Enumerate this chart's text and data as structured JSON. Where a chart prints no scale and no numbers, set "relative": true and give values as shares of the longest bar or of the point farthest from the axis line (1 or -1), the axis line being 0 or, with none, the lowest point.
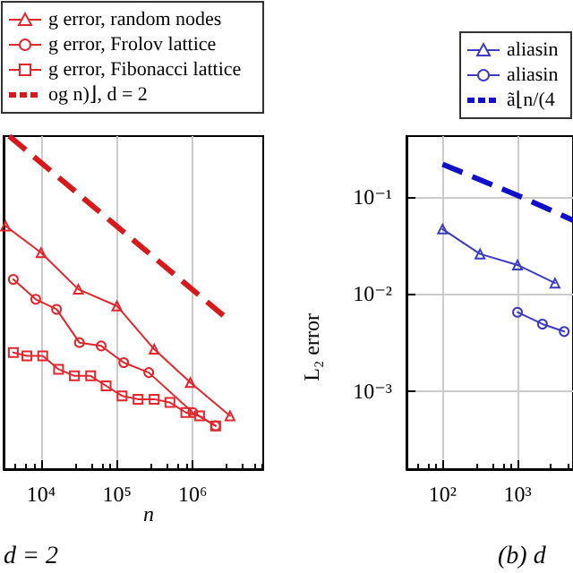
{
  "chart_data": [
    {
      "type": "line",
      "xlabel": "n",
      "annotations": [
        "d = 2"
      ],
      "relative": true,
      "log": "x",
      "grid": "x",
      "legend": "top",
      "tick_labels": "x",
      "xlim": [
        3200,
        8500000
      ],
      "xticks": [
        {
          "value": 10000,
          "label": "10⁴"
        },
        {
          "value": 100000,
          "label": "10⁵"
        },
        {
          "value": 1000000,
          "label": "10⁶"
        }
      ],
      "series": [
        {
          "name": "g error, random nodes",
          "color": "#e3262b",
          "marker": "triangle",
          "x": [
            3400,
            10000,
            31000,
            100000,
            310000,
            930000,
            3100000
          ],
          "values": [
            0.73,
            0.65,
            0.54,
            0.49,
            0.36,
            0.26,
            0.16
          ]
        },
        {
          "name": "g error, Frolov lattice",
          "color": "#e3262b",
          "marker": "circle",
          "x": [
            4300,
            8500,
            16000,
            32000,
            62000,
            123000,
            263000,
            1000000,
            2000000
          ],
          "values": [
            0.57,
            0.51,
            0.48,
            0.38,
            0.37,
            0.32,
            0.29,
            0.17,
            0.13
          ]
        },
        {
          "name": "g error, Fibonacci lattice",
          "color": "#e3262b",
          "marker": "square",
          "x": [
            4300,
            6500,
            10500,
            17000,
            27500,
            45000,
            72000,
            117000,
            190000,
            310000,
            500000,
            810000,
            1230000,
            2000000
          ],
          "values": [
            0.35,
            0.34,
            0.34,
            0.3,
            0.28,
            0.28,
            0.25,
            0.22,
            0.21,
            0.21,
            0.2,
            0.17,
            0.16,
            0.13
          ]
        },
        {
          "name": "og n)⌋, d = 2",
          "color": "#d7191c",
          "marker": "none",
          "line_style": "dashed",
          "x": [
            3800,
            2900000
          ],
          "values": [
            1,
            0.45
          ]
        }
      ]
    },
    {
      "type": "line",
      "ylabel": "L₂ error",
      "annotations": [
        "(b) d"
      ],
      "log": "xy",
      "grid": true,
      "legend": "top",
      "xlim": [
        33,
        5500
      ],
      "xticks": [
        {
          "value": 100,
          "label": "10²"
        },
        {
          "value": 1000,
          "label": "10³"
        }
      ],
      "ylim": [
        0.000155,
        0.43
      ],
      "yticks": [
        {
          "value": 0.1,
          "label": "10⁻¹"
        },
        {
          "value": 0.01,
          "label": "10⁻²"
        },
        {
          "value": 0.001,
          "label": "10⁻³"
        }
      ],
      "series": [
        {
          "name": "aliasin",
          "color": "#3b3bc4",
          "marker": "triangle",
          "x": [
            100,
            316,
            1000,
            3160
          ],
          "values": [
            0.047,
            0.026,
            0.02,
            0.013
          ]
        },
        {
          "name": "aliasin",
          "color": "#3b3bc4",
          "marker": "circle",
          "x": [
            1000,
            2150,
            4200
          ],
          "values": [
            0.0065,
            0.0049,
            0.0041
          ]
        },
        {
          "name": "ã⌊n/(4",
          "color": "#1010c8",
          "marker": "none",
          "line_style": "dashed",
          "x": [
            100,
            1000,
            5500
          ],
          "values": [
            0.22,
            0.105,
            0.058
          ]
        }
      ]
    }
  ]
}
